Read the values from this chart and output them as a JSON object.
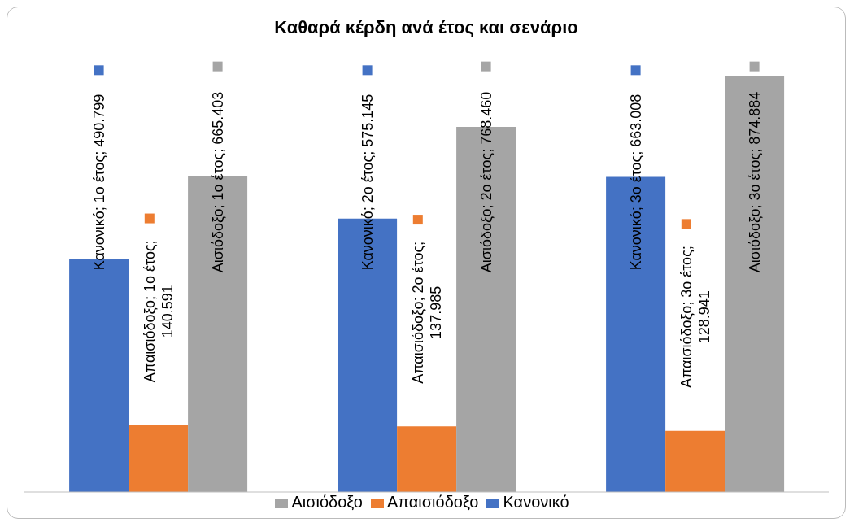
{
  "chart_data": {
    "type": "bar",
    "title": "Καθαρά κέρδη ανά έτος και σενάριο",
    "categories": [
      null,
      null,
      null
    ],
    "series": [
      {
        "name": "Κανονικό",
        "color": "#4472c4",
        "values": [
          490799,
          575145,
          663008
        ],
        "value_labels": [
          "Κανονικό; 1ο έτος; 490.799",
          "Κανονικό; 2ο έτος; 575.145",
          "Κανονικό; 3ο έτος; 663.008"
        ]
      },
      {
        "name": "Απαισιόδοξο",
        "color": "#ed7d31",
        "values": [
          140591,
          137985,
          128941
        ],
        "value_labels": [
          "Απαισιόδοξο; 1ο έτος; 140.591",
          "Απαισιόδοξο; 2ο έτος; 137.985",
          "Απαισιόδοξο; 3ο έτος; 128.941"
        ]
      },
      {
        "name": "Αισιόδοξο",
        "color": "#a5a5a5",
        "values": [
          665403,
          768460,
          874884
        ],
        "value_labels": [
          "Αισιόδοξο; 1ο έτος; 665.403",
          "Αισιόδοξο; 2ο έτος; 768.460",
          "Αισιόδοξο; 3ο έτος; 874.884"
        ]
      }
    ],
    "ylim": [
      0,
      900000
    ],
    "tick_labels": false,
    "grid": false,
    "legend": "bottom"
  }
}
